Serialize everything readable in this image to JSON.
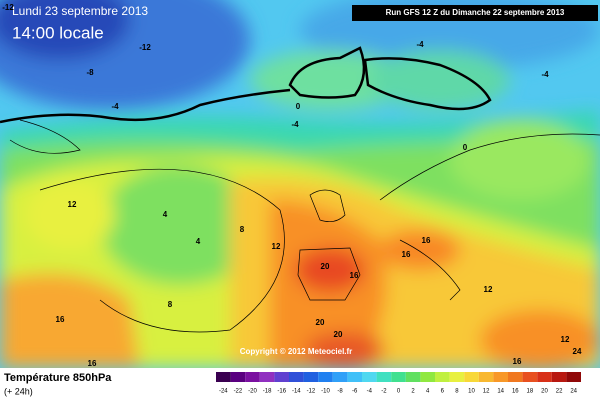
{
  "header": {
    "date": "Lundi 23 septembre 2013",
    "time": "14:00 locale",
    "run": "Run GFS 12 Z du Dimanche 22 septembre 2013"
  },
  "copyright": "Copyright © 2012 Meteociel.fr",
  "footer": {
    "title": "Température 850hPa",
    "lead": "(+ 24h)"
  },
  "contour_labels": [
    "-12",
    "-12",
    "-8",
    "-4",
    "0",
    "-4",
    "-4",
    "-4",
    "12",
    "4",
    "4",
    "8",
    "12",
    "8",
    "16",
    "16",
    "20",
    "16",
    "16",
    "12",
    "20",
    "20",
    "16",
    "16",
    "0",
    "12",
    "24"
  ],
  "legend": {
    "ticks": [
      "-24",
      "-22",
      "-20",
      "-18",
      "-16",
      "-14",
      "-12",
      "-10",
      "-8",
      "-6",
      "-4",
      "-2",
      "0",
      "2",
      "4",
      "6",
      "8",
      "10",
      "12",
      "14",
      "16",
      "18",
      "20",
      "22",
      "24"
    ]
  }
}
